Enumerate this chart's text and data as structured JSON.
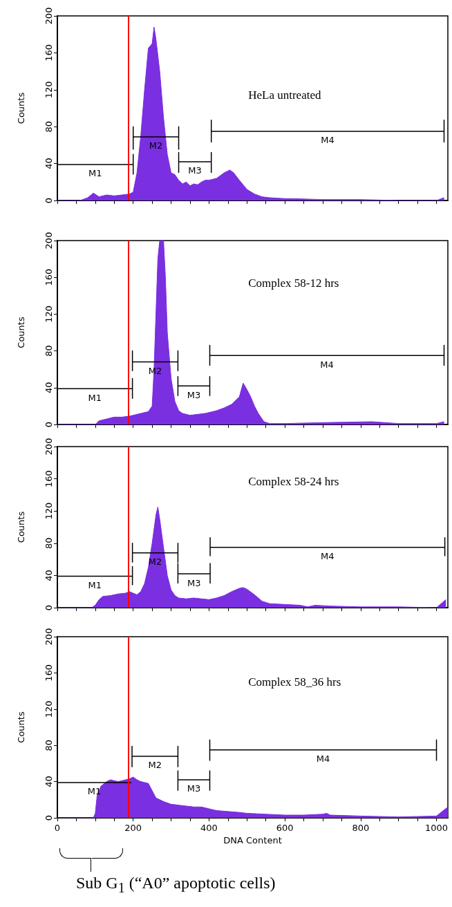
{
  "chart_data": [
    {
      "type": "area",
      "title": "HeLa untreated",
      "ylabel": "Counts",
      "xlim": [
        0,
        1030
      ],
      "ylim": [
        0,
        200
      ],
      "tick_labels": "y",
      "marker": "none",
      "line_style": "solid",
      "xticks": [
        0,
        {
          "value": 50,
          "label": null
        },
        {
          "value": 100,
          "label": null
        },
        {
          "value": 150,
          "label": null
        },
        200,
        {
          "value": 250,
          "label": null
        },
        {
          "value": 300,
          "label": null
        },
        {
          "value": 350,
          "label": null
        },
        400,
        {
          "value": 450,
          "label": null
        },
        {
          "value": 500,
          "label": null
        },
        {
          "value": 550,
          "label": null
        },
        600,
        {
          "value": 650,
          "label": null
        },
        {
          "value": 700,
          "label": null
        },
        {
          "value": 750,
          "label": null
        },
        800,
        {
          "value": 850,
          "label": null
        },
        {
          "value": 900,
          "label": null
        },
        {
          "value": 950,
          "label": null
        },
        1000
      ],
      "yticks": [
        0,
        40,
        80,
        120,
        160,
        200
      ],
      "series": [
        {
          "type": "area",
          "color": "#7a2fe0",
          "x": [
            0,
            60,
            80,
            95,
            110,
            130,
            150,
            170,
            190,
            200,
            210,
            220,
            230,
            240,
            250,
            255,
            260,
            270,
            280,
            290,
            300,
            310,
            320,
            330,
            340,
            350,
            360,
            370,
            380,
            390,
            400,
            420,
            440,
            455,
            465,
            480,
            500,
            520,
            540,
            560,
            600,
            620,
            700,
            800,
            900,
            1000,
            1020
          ],
          "values": [
            0,
            0,
            3,
            8,
            4,
            6,
            5,
            6,
            7,
            9,
            30,
            70,
            120,
            165,
            170,
            188,
            175,
            140,
            90,
            50,
            30,
            28,
            22,
            18,
            20,
            16,
            18,
            17,
            20,
            22,
            22,
            24,
            30,
            33,
            30,
            22,
            12,
            7,
            4,
            3,
            2,
            2,
            1,
            1,
            0,
            0,
            3
          ]
        },
        {
          "type": "line",
          "color": "#000000",
          "x": [
            0,
            0,
            0,
            200,
            200,
            200
          ],
          "values": [
            28,
            50,
            39,
            39,
            50,
            28
          ]
        },
        {
          "type": "line",
          "color": "#000000",
          "x": [
            200,
            200,
            200,
            320,
            320,
            320
          ],
          "values": [
            55,
            80,
            69,
            69,
            80,
            55
          ]
        },
        {
          "type": "line",
          "color": "#000000",
          "x": [
            320,
            320,
            320,
            406,
            406,
            406
          ],
          "values": [
            30,
            52,
            42,
            42,
            52,
            30
          ]
        },
        {
          "type": "line",
          "color": "#000000",
          "x": [
            406,
            406,
            406,
            1020,
            1020,
            1020
          ],
          "values": [
            63,
            87,
            75,
            75,
            87,
            63
          ]
        }
      ],
      "ref_lines": [
        {
          "axis": "x",
          "value": 187,
          "color": "#ff0000"
        }
      ],
      "annotations": [
        "M1",
        "M2",
        "M3",
        "M4"
      ]
    },
    {
      "type": "area",
      "title": "Complex 58-12 hrs",
      "ylabel": "Counts",
      "xlim": [
        0,
        1030
      ],
      "ylim": [
        0,
        200
      ],
      "tick_labels": "y",
      "marker": "none",
      "line_style": "solid",
      "xticks": [
        0,
        {
          "value": 50,
          "label": null
        },
        {
          "value": 100,
          "label": null
        },
        {
          "value": 150,
          "label": null
        },
        200,
        {
          "value": 250,
          "label": null
        },
        {
          "value": 300,
          "label": null
        },
        {
          "value": 350,
          "label": null
        },
        400,
        {
          "value": 450,
          "label": null
        },
        {
          "value": 500,
          "label": null
        },
        {
          "value": 550,
          "label": null
        },
        600,
        {
          "value": 650,
          "label": null
        },
        {
          "value": 700,
          "label": null
        },
        {
          "value": 750,
          "label": null
        },
        800,
        {
          "value": 850,
          "label": null
        },
        {
          "value": 900,
          "label": null
        },
        {
          "value": 950,
          "label": null
        },
        1000
      ],
      "yticks": [
        0,
        40,
        80,
        120,
        160,
        200
      ],
      "series": [
        {
          "type": "area",
          "color": "#7a2fe0",
          "x": [
            0,
            100,
            110,
            130,
            150,
            170,
            190,
            200,
            220,
            240,
            250,
            255,
            260,
            265,
            270,
            280,
            285,
            290,
            300,
            310,
            320,
            330,
            350,
            370,
            390,
            410,
            420,
            440,
            460,
            480,
            490,
            500,
            510,
            520,
            530,
            545,
            560,
            600,
            700,
            830,
            900,
            1000,
            1020
          ],
          "values": [
            0,
            0,
            4,
            6,
            8,
            8,
            9,
            10,
            12,
            14,
            20,
            60,
            120,
            180,
            200,
            200,
            160,
            100,
            50,
            25,
            15,
            12,
            10,
            11,
            12,
            14,
            15,
            18,
            22,
            30,
            45,
            38,
            30,
            20,
            12,
            3,
            1,
            1,
            2,
            3,
            1,
            1,
            3
          ]
        },
        {
          "type": "line",
          "color": "#000000",
          "x": [
            0,
            0,
            0,
            198,
            198,
            198
          ],
          "values": [
            28,
            50,
            39,
            39,
            50,
            28
          ]
        },
        {
          "type": "line",
          "color": "#000000",
          "x": [
            198,
            198,
            198,
            318,
            318,
            318
          ],
          "values": [
            58,
            80,
            68,
            68,
            80,
            58
          ]
        },
        {
          "type": "line",
          "color": "#000000",
          "x": [
            318,
            318,
            318,
            402,
            402,
            402
          ],
          "values": [
            31,
            52,
            42,
            42,
            52,
            31
          ]
        },
        {
          "type": "line",
          "color": "#000000",
          "x": [
            402,
            402,
            402,
            1020,
            1020,
            1020
          ],
          "values": [
            64,
            86,
            75,
            75,
            86,
            64
          ]
        }
      ],
      "ref_lines": [
        {
          "axis": "x",
          "value": 187,
          "color": "#ff0000"
        }
      ],
      "annotations": [
        "M1",
        "M2",
        "M3",
        "M4"
      ]
    },
    {
      "type": "area",
      "title": "Complex 58-24 hrs",
      "ylabel": "Counts",
      "xlim": [
        0,
        1030
      ],
      "ylim": [
        0,
        200
      ],
      "tick_labels": "y",
      "marker": "none",
      "line_style": "solid",
      "xticks": [
        0,
        {
          "value": 50,
          "label": null
        },
        {
          "value": 100,
          "label": null
        },
        {
          "value": 150,
          "label": null
        },
        200,
        {
          "value": 250,
          "label": null
        },
        {
          "value": 300,
          "label": null
        },
        {
          "value": 350,
          "label": null
        },
        400,
        {
          "value": 450,
          "label": null
        },
        {
          "value": 500,
          "label": null
        },
        {
          "value": 550,
          "label": null
        },
        600,
        {
          "value": 650,
          "label": null
        },
        {
          "value": 700,
          "label": null
        },
        {
          "value": 750,
          "label": null
        },
        800,
        {
          "value": 850,
          "label": null
        },
        {
          "value": 900,
          "label": null
        },
        {
          "value": 950,
          "label": null
        },
        1000
      ],
      "yticks": [
        0,
        40,
        80,
        120,
        160,
        200
      ],
      "series": [
        {
          "type": "area",
          "color": "#7a2fe0",
          "x": [
            0,
            90,
            100,
            110,
            120,
            140,
            160,
            180,
            190,
            200,
            210,
            220,
            230,
            240,
            250,
            260,
            265,
            270,
            280,
            290,
            300,
            310,
            320,
            340,
            360,
            380,
            400,
            420,
            440,
            460,
            480,
            490,
            500,
            520,
            540,
            560,
            600,
            640,
            660,
            680,
            720,
            800,
            900,
            1000,
            1025
          ],
          "values": [
            0,
            0,
            3,
            10,
            14,
            15,
            17,
            18,
            20,
            18,
            16,
            20,
            30,
            50,
            80,
            115,
            125,
            110,
            75,
            40,
            22,
            15,
            12,
            11,
            12,
            11,
            10,
            12,
            15,
            20,
            24,
            25,
            23,
            16,
            8,
            5,
            4,
            3,
            1,
            3,
            2,
            1,
            1,
            0,
            10
          ]
        },
        {
          "type": "line",
          "color": "#000000",
          "x": [
            0,
            0,
            0,
            198,
            198,
            198
          ],
          "values": [
            28,
            51,
            39,
            39,
            51,
            28
          ]
        },
        {
          "type": "line",
          "color": "#000000",
          "x": [
            198,
            198,
            198,
            318,
            318,
            318
          ],
          "values": [
            56,
            80,
            68,
            68,
            80,
            56
          ]
        },
        {
          "type": "line",
          "color": "#000000",
          "x": [
            318,
            318,
            318,
            403,
            403,
            403
          ],
          "values": [
            30,
            55,
            42,
            42,
            55,
            30
          ]
        },
        {
          "type": "line",
          "color": "#000000",
          "x": [
            403,
            403,
            403,
            1022,
            1022,
            1022
          ],
          "values": [
            64,
            87,
            75,
            75,
            87,
            64
          ]
        }
      ],
      "ref_lines": [
        {
          "axis": "x",
          "value": 187,
          "color": "#ff0000"
        }
      ],
      "annotations": [
        "M1",
        "M2",
        "M3",
        "M4"
      ]
    },
    {
      "type": "area",
      "title": "Complex 58_36 hrs",
      "ylabel": "Counts",
      "xlabel": "DNA Content",
      "xlim": [
        0,
        1030
      ],
      "ylim": [
        0,
        200
      ],
      "marker": "none",
      "line_style": "solid",
      "xticks": [
        0,
        {
          "value": 50,
          "label": null
        },
        {
          "value": 100,
          "label": null
        },
        {
          "value": 150,
          "label": null
        },
        200,
        {
          "value": 250,
          "label": null
        },
        {
          "value": 300,
          "label": null
        },
        {
          "value": 350,
          "label": null
        },
        400,
        {
          "value": 450,
          "label": null
        },
        {
          "value": 500,
          "label": null
        },
        {
          "value": 550,
          "label": null
        },
        600,
        {
          "value": 650,
          "label": null
        },
        {
          "value": 700,
          "label": null
        },
        {
          "value": 750,
          "label": null
        },
        800,
        {
          "value": 850,
          "label": null
        },
        {
          "value": 900,
          "label": null
        },
        {
          "value": 950,
          "label": null
        },
        1000
      ],
      "yticks": [
        0,
        40,
        80,
        120,
        160,
        200
      ],
      "series": [
        {
          "type": "area",
          "color": "#7a2fe0",
          "x": [
            0,
            95,
            100,
            105,
            115,
            130,
            140,
            150,
            160,
            170,
            180,
            190,
            200,
            210,
            220,
            240,
            250,
            260,
            270,
            280,
            300,
            320,
            340,
            360,
            380,
            400,
            420,
            450,
            480,
            500,
            550,
            600,
            650,
            700,
            710,
            720,
            800,
            900,
            1000,
            1030
          ],
          "values": [
            0,
            0,
            5,
            25,
            35,
            40,
            42,
            41,
            40,
            41,
            42,
            43,
            45,
            42,
            40,
            38,
            30,
            22,
            20,
            18,
            15,
            14,
            13,
            12,
            12,
            10,
            8,
            7,
            6,
            5,
            4,
            3,
            3,
            4,
            5,
            3,
            2,
            1,
            2,
            12
          ]
        },
        {
          "type": "line",
          "color": "#000000",
          "x": [
            0,
            0,
            0,
            195
          ],
          "values": [
            27,
            51,
            39,
            39
          ]
        },
        {
          "type": "line",
          "color": "#000000",
          "x": [
            197,
            197,
            197,
            318,
            318,
            318
          ],
          "values": [
            56,
            79,
            68,
            68,
            79,
            56
          ]
        },
        {
          "type": "line",
          "color": "#000000",
          "x": [
            318,
            318,
            318,
            402,
            402,
            402
          ],
          "values": [
            30,
            52,
            42,
            42,
            52,
            30
          ]
        },
        {
          "type": "line",
          "color": "#000000",
          "x": [
            402,
            402,
            402,
            1000,
            1000,
            1000
          ],
          "values": [
            63,
            86,
            75,
            75,
            86,
            63
          ]
        }
      ],
      "ref_lines": [
        {
          "axis": "x",
          "value": 187,
          "color": "#ff0000"
        }
      ],
      "annotations": [
        "M1",
        "M2",
        "M3",
        "M4",
        "Sub G$_{1}$ (“A0” apoptotic cells)"
      ]
    }
  ]
}
